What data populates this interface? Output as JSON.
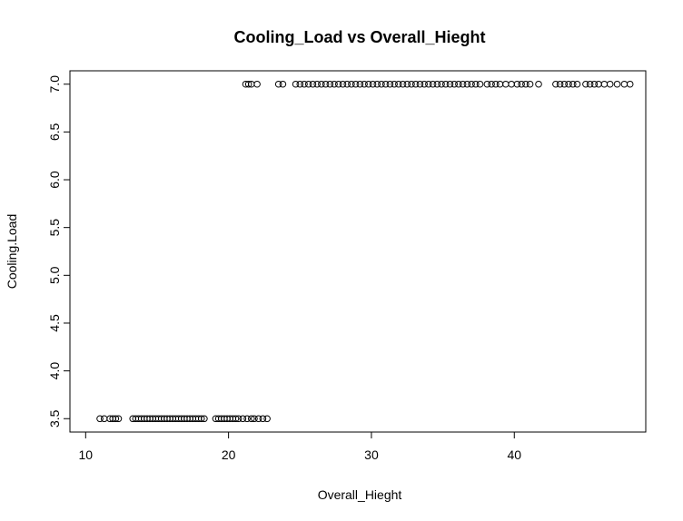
{
  "chart_data": {
    "type": "scatter",
    "title": "Cooling_Load vs Overall_Hieght",
    "xlabel": "Overall_Hieght",
    "ylabel": "Cooling.Load",
    "xlim": [
      8.9,
      49.2
    ],
    "ylim": [
      3.36,
      7.14
    ],
    "x_ticks": [
      10,
      20,
      30,
      40
    ],
    "x_tick_labels": [
      "10",
      "20",
      "30",
      "40"
    ],
    "y_ticks": [
      3.5,
      4.0,
      4.5,
      5.0,
      5.5,
      6.0,
      6.5,
      7.0
    ],
    "y_tick_labels": [
      "3.5",
      "4.0",
      "4.5",
      "5.0",
      "5.5",
      "6.0",
      "6.5",
      "7.0"
    ],
    "grid": false,
    "marker": "open-circle",
    "marker_color": "#000000",
    "series": [
      {
        "y": 3.5,
        "x": [
          11.0,
          11.3,
          11.7,
          11.9,
          12.1,
          12.3,
          13.3,
          13.5,
          13.7,
          13.9,
          14.1,
          14.3,
          14.5,
          14.7,
          14.9,
          15.1,
          15.3,
          15.5,
          15.7,
          15.9,
          16.1,
          16.3,
          16.5,
          16.7,
          16.9,
          17.1,
          17.3,
          17.5,
          17.7,
          17.9,
          18.1,
          18.3,
          19.1,
          19.3,
          19.5,
          19.7,
          19.9,
          20.1,
          20.3,
          20.5,
          20.7,
          21.0,
          21.3,
          21.6,
          21.8,
          22.1,
          22.4,
          22.7
        ]
      },
      {
        "y": 7.0,
        "x": [
          21.2,
          21.4,
          21.6,
          22.0,
          23.5,
          23.8,
          24.7,
          25.0,
          25.3,
          25.6,
          25.9,
          26.2,
          26.5,
          26.8,
          27.1,
          27.4,
          27.7,
          28.0,
          28.3,
          28.6,
          28.9,
          29.2,
          29.5,
          29.8,
          30.1,
          30.4,
          30.7,
          31.0,
          31.3,
          31.6,
          31.9,
          32.2,
          32.5,
          32.8,
          33.1,
          33.4,
          33.7,
          34.0,
          34.3,
          34.6,
          34.9,
          35.2,
          35.5,
          35.8,
          36.1,
          36.4,
          36.7,
          37.0,
          37.3,
          37.6,
          38.1,
          38.4,
          38.7,
          39.0,
          39.4,
          39.8,
          40.2,
          40.5,
          40.8,
          41.1,
          41.7,
          42.9,
          43.2,
          43.5,
          43.8,
          44.1,
          44.4,
          45.0,
          45.3,
          45.6,
          45.9,
          46.3,
          46.7,
          47.2,
          47.7,
          48.1
        ]
      }
    ]
  }
}
